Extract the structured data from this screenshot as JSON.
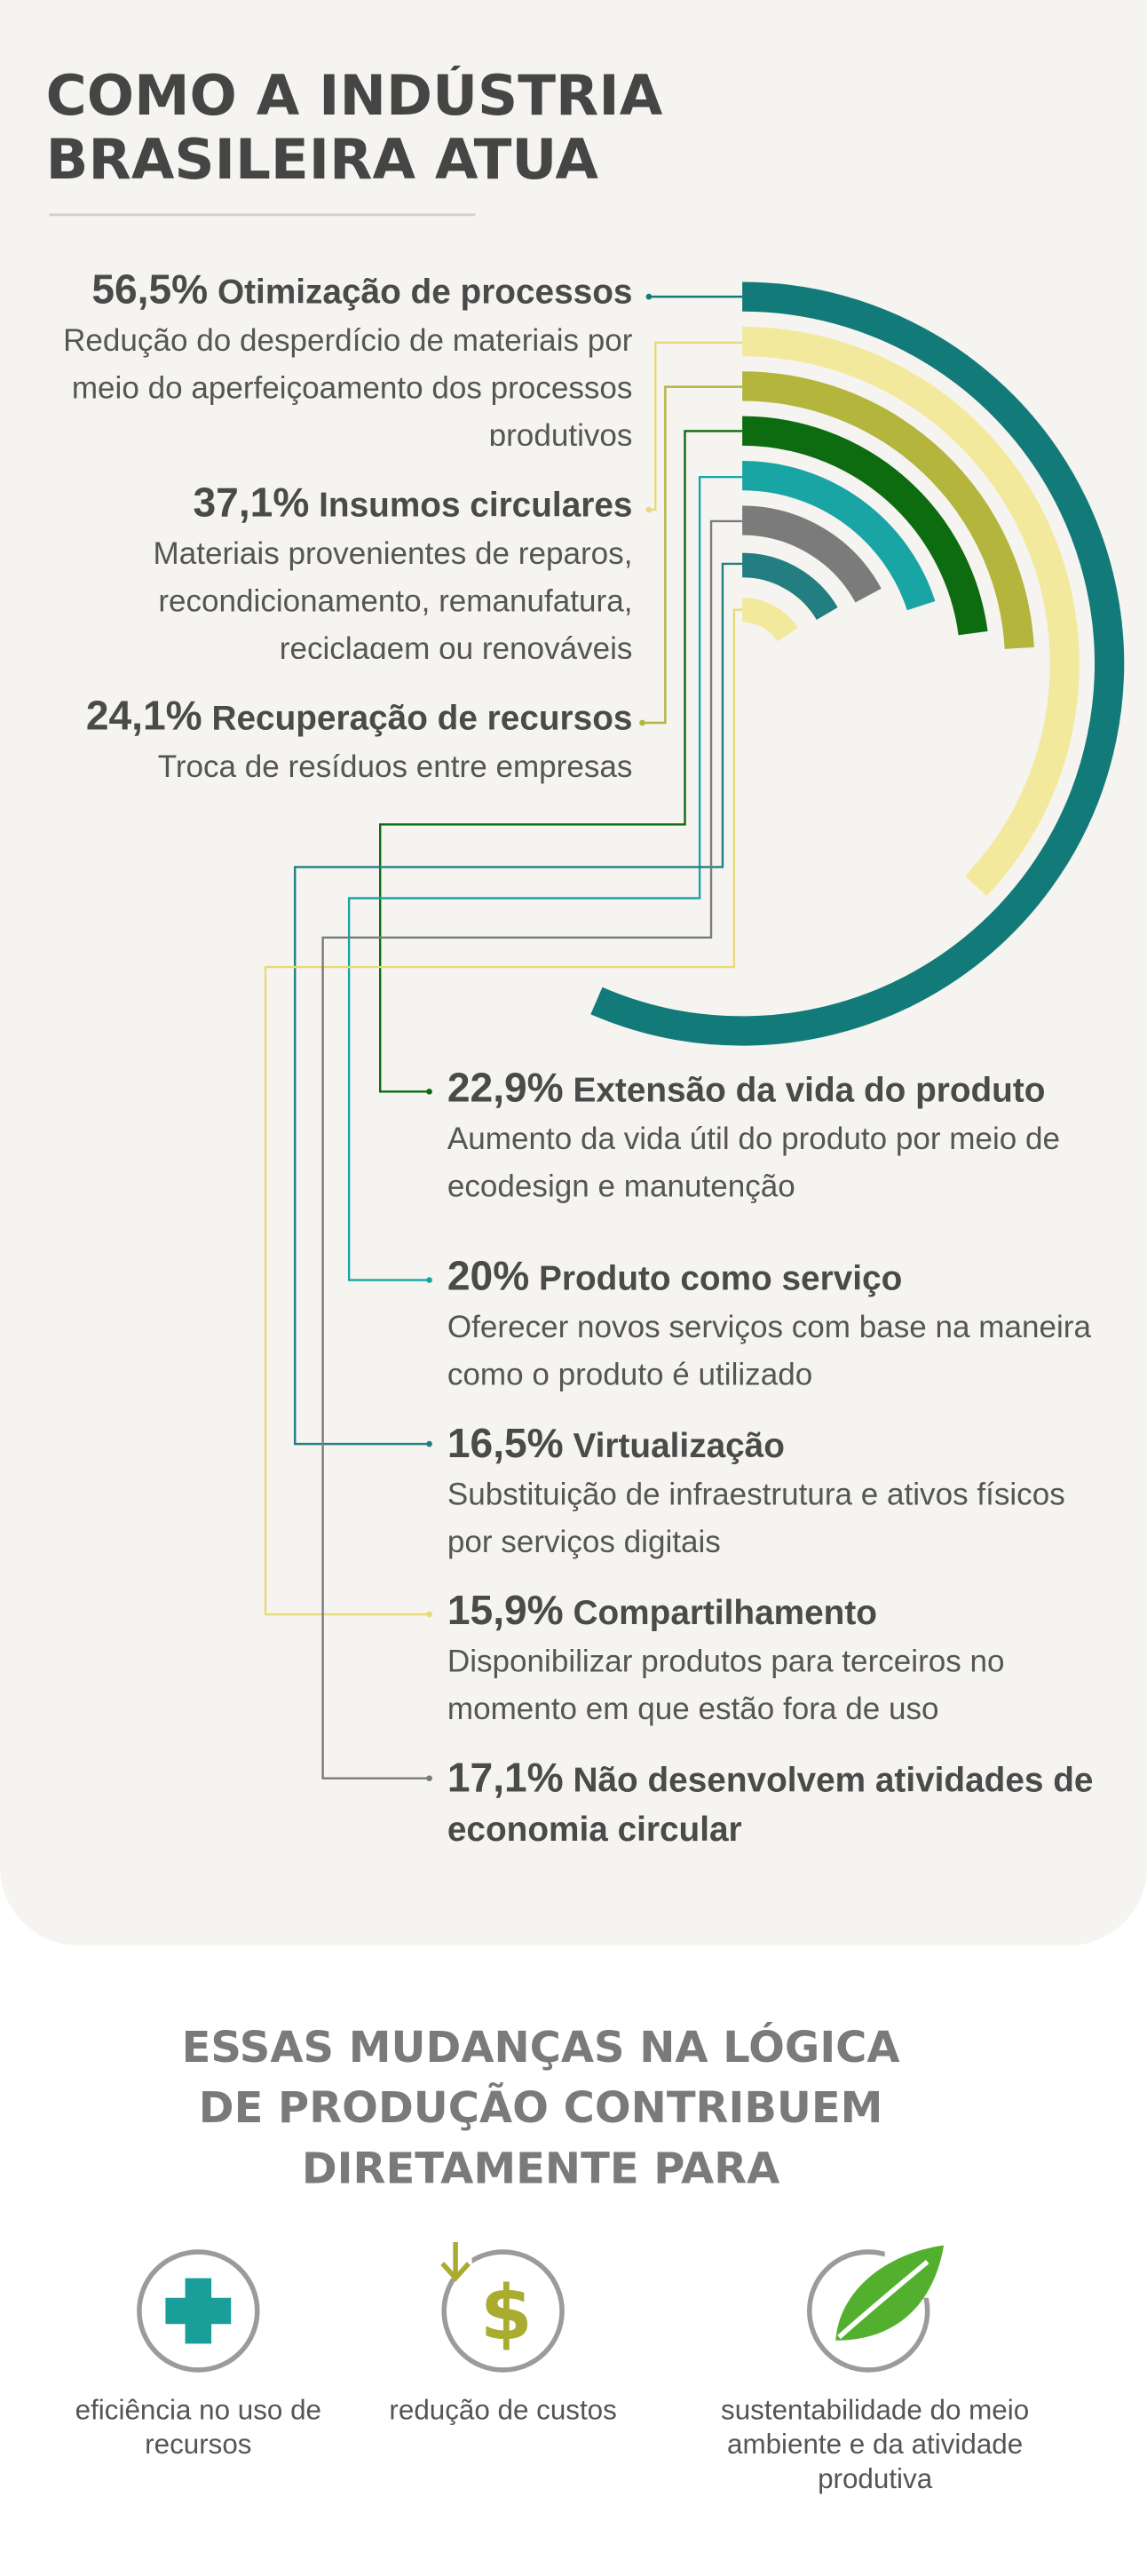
{
  "chart_data": {
    "type": "radial-bar",
    "title": "COMO A INDÚSTRIA BRASILEIRA ATUA",
    "categories": [
      "Otimização de processos",
      "Insumos circulares",
      "Recuperação de recursos",
      "Extensão da vida do produto",
      "Produto como serviço",
      "Virtualização",
      "Compartilhamento",
      "Não desenvolvem atividades de economia circular"
    ],
    "values": [
      56.5,
      37.1,
      24.1,
      22.9,
      20,
      16.5,
      15.9,
      17.1
    ],
    "value_labels": [
      "56,5%",
      "37,1%",
      "24,1%",
      "22,9%",
      "20%",
      "16,5%",
      "15,9%",
      "17,1%"
    ],
    "descriptions": [
      "Redução do desperdício de materiais por meio do aperfeiçoamento dos processos produtivos",
      "Materiais provenientes de reparos, recondicionamento, remanufatura, reciclagem ou renováveis",
      "Troca de resíduos entre empresas",
      "Aumento da vida útil do produto por meio de ecodesign e manutenção",
      "Oferecer novos serviços com base na maneira como o produto é utilizado",
      "Substituição de infraestrutura e ativos físicos por serviços digitais",
      "Disponibilizar produtos para terceiros no momento em que estão fora de uso",
      null
    ],
    "colors": [
      "#127a78",
      "#f3e99c",
      "#b3b53c",
      "#0d6b10",
      "#19a5a4",
      "#237e82",
      "#f3e99c",
      "#7b7b7b"
    ]
  },
  "footer": {
    "heading": "ESSAS MUDANÇAS NA LÓGICA DE PRODUÇÃO CONTRIBUEM DIRETAMENTE PARA",
    "benefits": [
      "eficiência no uso de recursos",
      "redução de custos",
      "sustentabilidade do meio ambiente e da atividade produtiva"
    ]
  }
}
